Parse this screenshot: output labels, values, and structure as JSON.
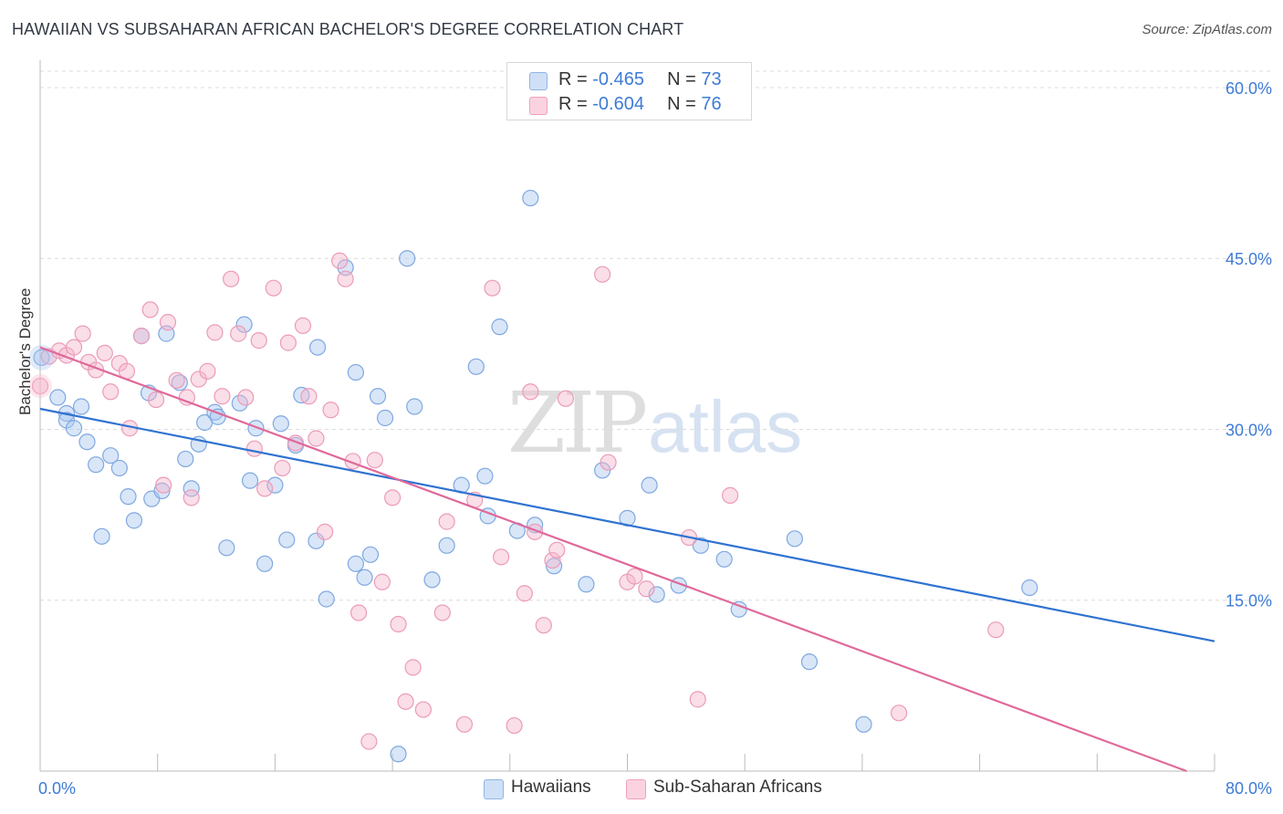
{
  "title": "HAWAIIAN VS SUBSAHARAN AFRICAN BACHELOR'S DEGREE CORRELATION CHART",
  "source": "Source: ZipAtlas.com",
  "watermark": {
    "zip": "ZIP",
    "atlas": "atlas"
  },
  "legend_top": [
    {
      "r_label": "R = ",
      "r_value": "-0.465",
      "n_label": "N = ",
      "n_value": "73",
      "color": "#a9c7ef"
    },
    {
      "r_label": "R = ",
      "r_value": "-0.604",
      "n_label": "N = ",
      "n_value": "76",
      "color": "#f5b6cb"
    }
  ],
  "legend_bottom": [
    {
      "label": "Hawaiians",
      "color": "#a9c7ef"
    },
    {
      "label": "Sub-Saharan Africans",
      "color": "#f5b6cb"
    }
  ],
  "chart_data": {
    "type": "scatter",
    "title": "HAWAIIAN VS SUBSAHARAN AFRICAN BACHELOR'S DEGREE CORRELATION CHART",
    "xlabel": "",
    "ylabel": "Bachelor's Degree",
    "xlim": [
      0,
      80
    ],
    "ylim": [
      0,
      62
    ],
    "x_tick_labels": [
      {
        "value": 0,
        "label": "0.0%"
      },
      {
        "value": 80,
        "label": "80.0%"
      }
    ],
    "y_tick_labels": [
      {
        "value": 15,
        "label": "15.0%"
      },
      {
        "value": 30,
        "label": "30.0%"
      },
      {
        "value": 45,
        "label": "45.0%"
      },
      {
        "value": 60,
        "label": "60.0%"
      }
    ],
    "x_minor_ticks": [
      8,
      16,
      24,
      32,
      40,
      48,
      56,
      64,
      72,
      80
    ],
    "grid": "horizontal-dashed",
    "legend_position": "top-center",
    "series": [
      {
        "name": "Hawaiians",
        "color": "#a9c7ef",
        "line_color": "#2f72d1",
        "trend": {
          "x0": 0,
          "y0": 31.8,
          "x1": 80,
          "y1": 11.4
        },
        "points": [
          [
            0.1,
            36.3
          ],
          [
            1.2,
            32.8
          ],
          [
            1.8,
            31.4
          ],
          [
            1.8,
            30.8
          ],
          [
            2.3,
            30.1
          ],
          [
            2.8,
            32.0
          ],
          [
            3.2,
            28.9
          ],
          [
            3.8,
            26.9
          ],
          [
            4.2,
            20.6
          ],
          [
            4.8,
            27.7
          ],
          [
            5.4,
            26.6
          ],
          [
            6.0,
            24.1
          ],
          [
            6.4,
            22.0
          ],
          [
            6.9,
            38.2
          ],
          [
            7.4,
            33.2
          ],
          [
            7.6,
            23.9
          ],
          [
            8.3,
            24.6
          ],
          [
            8.6,
            38.4
          ],
          [
            9.5,
            34.1
          ],
          [
            9.9,
            27.4
          ],
          [
            10.3,
            24.8
          ],
          [
            10.8,
            28.7
          ],
          [
            11.2,
            30.6
          ],
          [
            11.9,
            31.5
          ],
          [
            12.1,
            31.1
          ],
          [
            12.7,
            19.6
          ],
          [
            13.6,
            32.3
          ],
          [
            13.9,
            39.2
          ],
          [
            14.3,
            25.5
          ],
          [
            14.7,
            30.1
          ],
          [
            15.3,
            18.2
          ],
          [
            16.0,
            25.1
          ],
          [
            16.4,
            30.5
          ],
          [
            16.8,
            20.3
          ],
          [
            17.4,
            28.6
          ],
          [
            17.8,
            33.0
          ],
          [
            18.8,
            20.2
          ],
          [
            18.9,
            37.2
          ],
          [
            19.5,
            15.1
          ],
          [
            20.8,
            44.2
          ],
          [
            21.5,
            18.2
          ],
          [
            21.5,
            35.0
          ],
          [
            22.1,
            17.0
          ],
          [
            22.5,
            19.0
          ],
          [
            23.0,
            32.9
          ],
          [
            23.5,
            31.0
          ],
          [
            24.4,
            1.5
          ],
          [
            25.0,
            45.0
          ],
          [
            25.5,
            32.0
          ],
          [
            26.7,
            16.8
          ],
          [
            27.7,
            19.8
          ],
          [
            28.7,
            25.1
          ],
          [
            29.7,
            35.5
          ],
          [
            30.3,
            25.9
          ],
          [
            30.5,
            22.4
          ],
          [
            31.3,
            39.0
          ],
          [
            32.5,
            21.1
          ],
          [
            33.4,
            50.3
          ],
          [
            33.7,
            21.6
          ],
          [
            35.0,
            18.0
          ],
          [
            37.2,
            16.4
          ],
          [
            38.3,
            26.4
          ],
          [
            40.0,
            22.2
          ],
          [
            41.5,
            25.1
          ],
          [
            42.0,
            15.5
          ],
          [
            43.5,
            16.3
          ],
          [
            45.0,
            19.8
          ],
          [
            46.6,
            18.6
          ],
          [
            47.6,
            14.2
          ],
          [
            51.4,
            20.4
          ],
          [
            52.4,
            9.6
          ],
          [
            56.1,
            4.1
          ],
          [
            67.4,
            16.1
          ]
        ]
      },
      {
        "name": "Sub-Saharan Africans",
        "color": "#f5b6cb",
        "line_color": "#e0699a",
        "trend": {
          "x0": 0,
          "y0": 37.2,
          "x1": 78.1,
          "y1": 0.0
        },
        "points": [
          [
            0.0,
            33.8
          ],
          [
            0.6,
            36.4
          ],
          [
            1.3,
            36.9
          ],
          [
            1.8,
            36.5
          ],
          [
            2.3,
            37.2
          ],
          [
            2.9,
            38.4
          ],
          [
            3.3,
            35.9
          ],
          [
            3.8,
            35.2
          ],
          [
            4.4,
            36.7
          ],
          [
            4.8,
            33.3
          ],
          [
            5.4,
            35.8
          ],
          [
            5.9,
            35.1
          ],
          [
            6.1,
            30.1
          ],
          [
            6.9,
            38.2
          ],
          [
            7.5,
            40.5
          ],
          [
            7.9,
            32.6
          ],
          [
            8.4,
            25.1
          ],
          [
            8.7,
            39.4
          ],
          [
            9.3,
            34.3
          ],
          [
            10.0,
            32.8
          ],
          [
            10.3,
            24.0
          ],
          [
            10.8,
            34.4
          ],
          [
            11.4,
            35.1
          ],
          [
            11.9,
            38.5
          ],
          [
            12.4,
            32.9
          ],
          [
            13.0,
            43.2
          ],
          [
            13.5,
            38.4
          ],
          [
            14.0,
            32.8
          ],
          [
            14.6,
            28.3
          ],
          [
            14.9,
            37.8
          ],
          [
            15.3,
            24.8
          ],
          [
            15.9,
            42.4
          ],
          [
            16.5,
            26.6
          ],
          [
            16.9,
            37.6
          ],
          [
            17.4,
            28.8
          ],
          [
            17.9,
            39.1
          ],
          [
            18.3,
            32.9
          ],
          [
            18.8,
            29.2
          ],
          [
            19.4,
            21.0
          ],
          [
            19.8,
            31.7
          ],
          [
            20.4,
            44.8
          ],
          [
            20.8,
            43.2
          ],
          [
            21.3,
            27.2
          ],
          [
            21.7,
            13.9
          ],
          [
            22.4,
            2.6
          ],
          [
            22.8,
            27.3
          ],
          [
            23.3,
            16.6
          ],
          [
            24.0,
            24.0
          ],
          [
            24.4,
            12.9
          ],
          [
            24.9,
            6.1
          ],
          [
            25.4,
            9.1
          ],
          [
            26.1,
            5.4
          ],
          [
            27.4,
            13.9
          ],
          [
            27.7,
            21.9
          ],
          [
            28.9,
            4.1
          ],
          [
            29.6,
            23.8
          ],
          [
            30.8,
            42.4
          ],
          [
            31.4,
            18.8
          ],
          [
            32.3,
            4.0
          ],
          [
            33.0,
            15.6
          ],
          [
            33.4,
            33.3
          ],
          [
            33.7,
            21.0
          ],
          [
            34.3,
            12.8
          ],
          [
            34.9,
            18.5
          ],
          [
            35.2,
            19.4
          ],
          [
            35.8,
            32.7
          ],
          [
            38.3,
            43.6
          ],
          [
            38.7,
            27.1
          ],
          [
            40.0,
            16.6
          ],
          [
            40.5,
            17.1
          ],
          [
            41.3,
            16.0
          ],
          [
            44.2,
            20.5
          ],
          [
            44.8,
            6.3
          ],
          [
            47.0,
            24.2
          ],
          [
            58.5,
            5.1
          ],
          [
            65.1,
            12.4
          ]
        ]
      }
    ]
  }
}
